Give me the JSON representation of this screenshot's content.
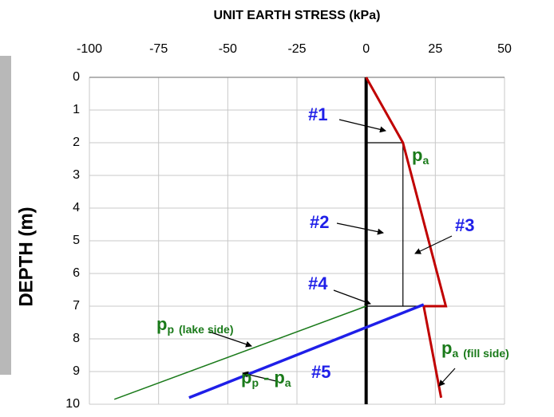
{
  "chart_data": {
    "type": "line",
    "title": "UNIT EARTH  STRESS (kPa)",
    "y_label": "DEPTH (m)",
    "xlim": [
      -100,
      50
    ],
    "xticks": [
      -100,
      -75,
      -50,
      -25,
      0,
      25,
      50
    ],
    "ylim": [
      0,
      10
    ],
    "yticks": [
      0,
      1,
      2,
      3,
      4,
      5,
      6,
      7,
      8,
      9,
      10
    ],
    "grid": true,
    "series": [
      {
        "color": "#000000",
        "width": 4,
        "x": [
          0,
          0
        ],
        "y": [
          0,
          10
        ]
      },
      {
        "color": "#000000",
        "width": 1.2,
        "x": [
          0,
          13.3,
          13.3,
          0
        ],
        "y": [
          2,
          2,
          7,
          7
        ]
      },
      {
        "color": "#000000",
        "width": 1.2,
        "x": [
          13.3,
          20.8
        ],
        "y": [
          7,
          7
        ]
      },
      {
        "color": "#c00000",
        "width": 3,
        "x": [
          0,
          13.3,
          28.8,
          20.8,
          27.1
        ],
        "y": [
          0,
          2,
          7,
          7,
          9.8
        ]
      },
      {
        "color": "#1a7a1a",
        "width": 1.5,
        "x": [
          0,
          -91
        ],
        "y": [
          7,
          9.85
        ]
      },
      {
        "color": "#1f1fe8",
        "width": 3.5,
        "x": [
          20.8,
          -64
        ],
        "y": [
          6.95,
          9.8
        ]
      }
    ],
    "annotations": [
      {
        "color": "#1f1fe8",
        "parts": [
          {
            "text": "#1"
          }
        ]
      },
      {
        "color": "#1a7a1a",
        "parts": [
          {
            "text": "p"
          },
          {
            "text": "a",
            "sub": true
          }
        ]
      },
      {
        "color": "#1f1fe8",
        "parts": [
          {
            "text": "#2"
          }
        ]
      },
      {
        "color": "#1f1fe8",
        "parts": [
          {
            "text": "#3"
          }
        ]
      },
      {
        "color": "#1f1fe8",
        "parts": [
          {
            "text": "#4"
          }
        ]
      },
      {
        "color": "#1a7a1a",
        "parts": [
          {
            "text": "p"
          },
          {
            "text": "p",
            "sub": true
          },
          {
            "text": "(lake side)",
            "sub": true
          }
        ]
      },
      {
        "color": "#1a7a1a",
        "parts": [
          {
            "text": "p"
          },
          {
            "text": "a",
            "sub": true
          },
          {
            "text": "(fill side)",
            "sub": true
          }
        ]
      },
      {
        "color": "#1f1fe8",
        "parts": [
          {
            "text": "#5"
          }
        ]
      },
      {
        "color": "#1a7a1a",
        "parts": [
          {
            "text": "p"
          },
          {
            "text": "p",
            "sub": true
          },
          {
            "text": "-"
          },
          {
            "text": "p"
          },
          {
            "text": "a",
            "sub": true
          }
        ]
      }
    ]
  }
}
